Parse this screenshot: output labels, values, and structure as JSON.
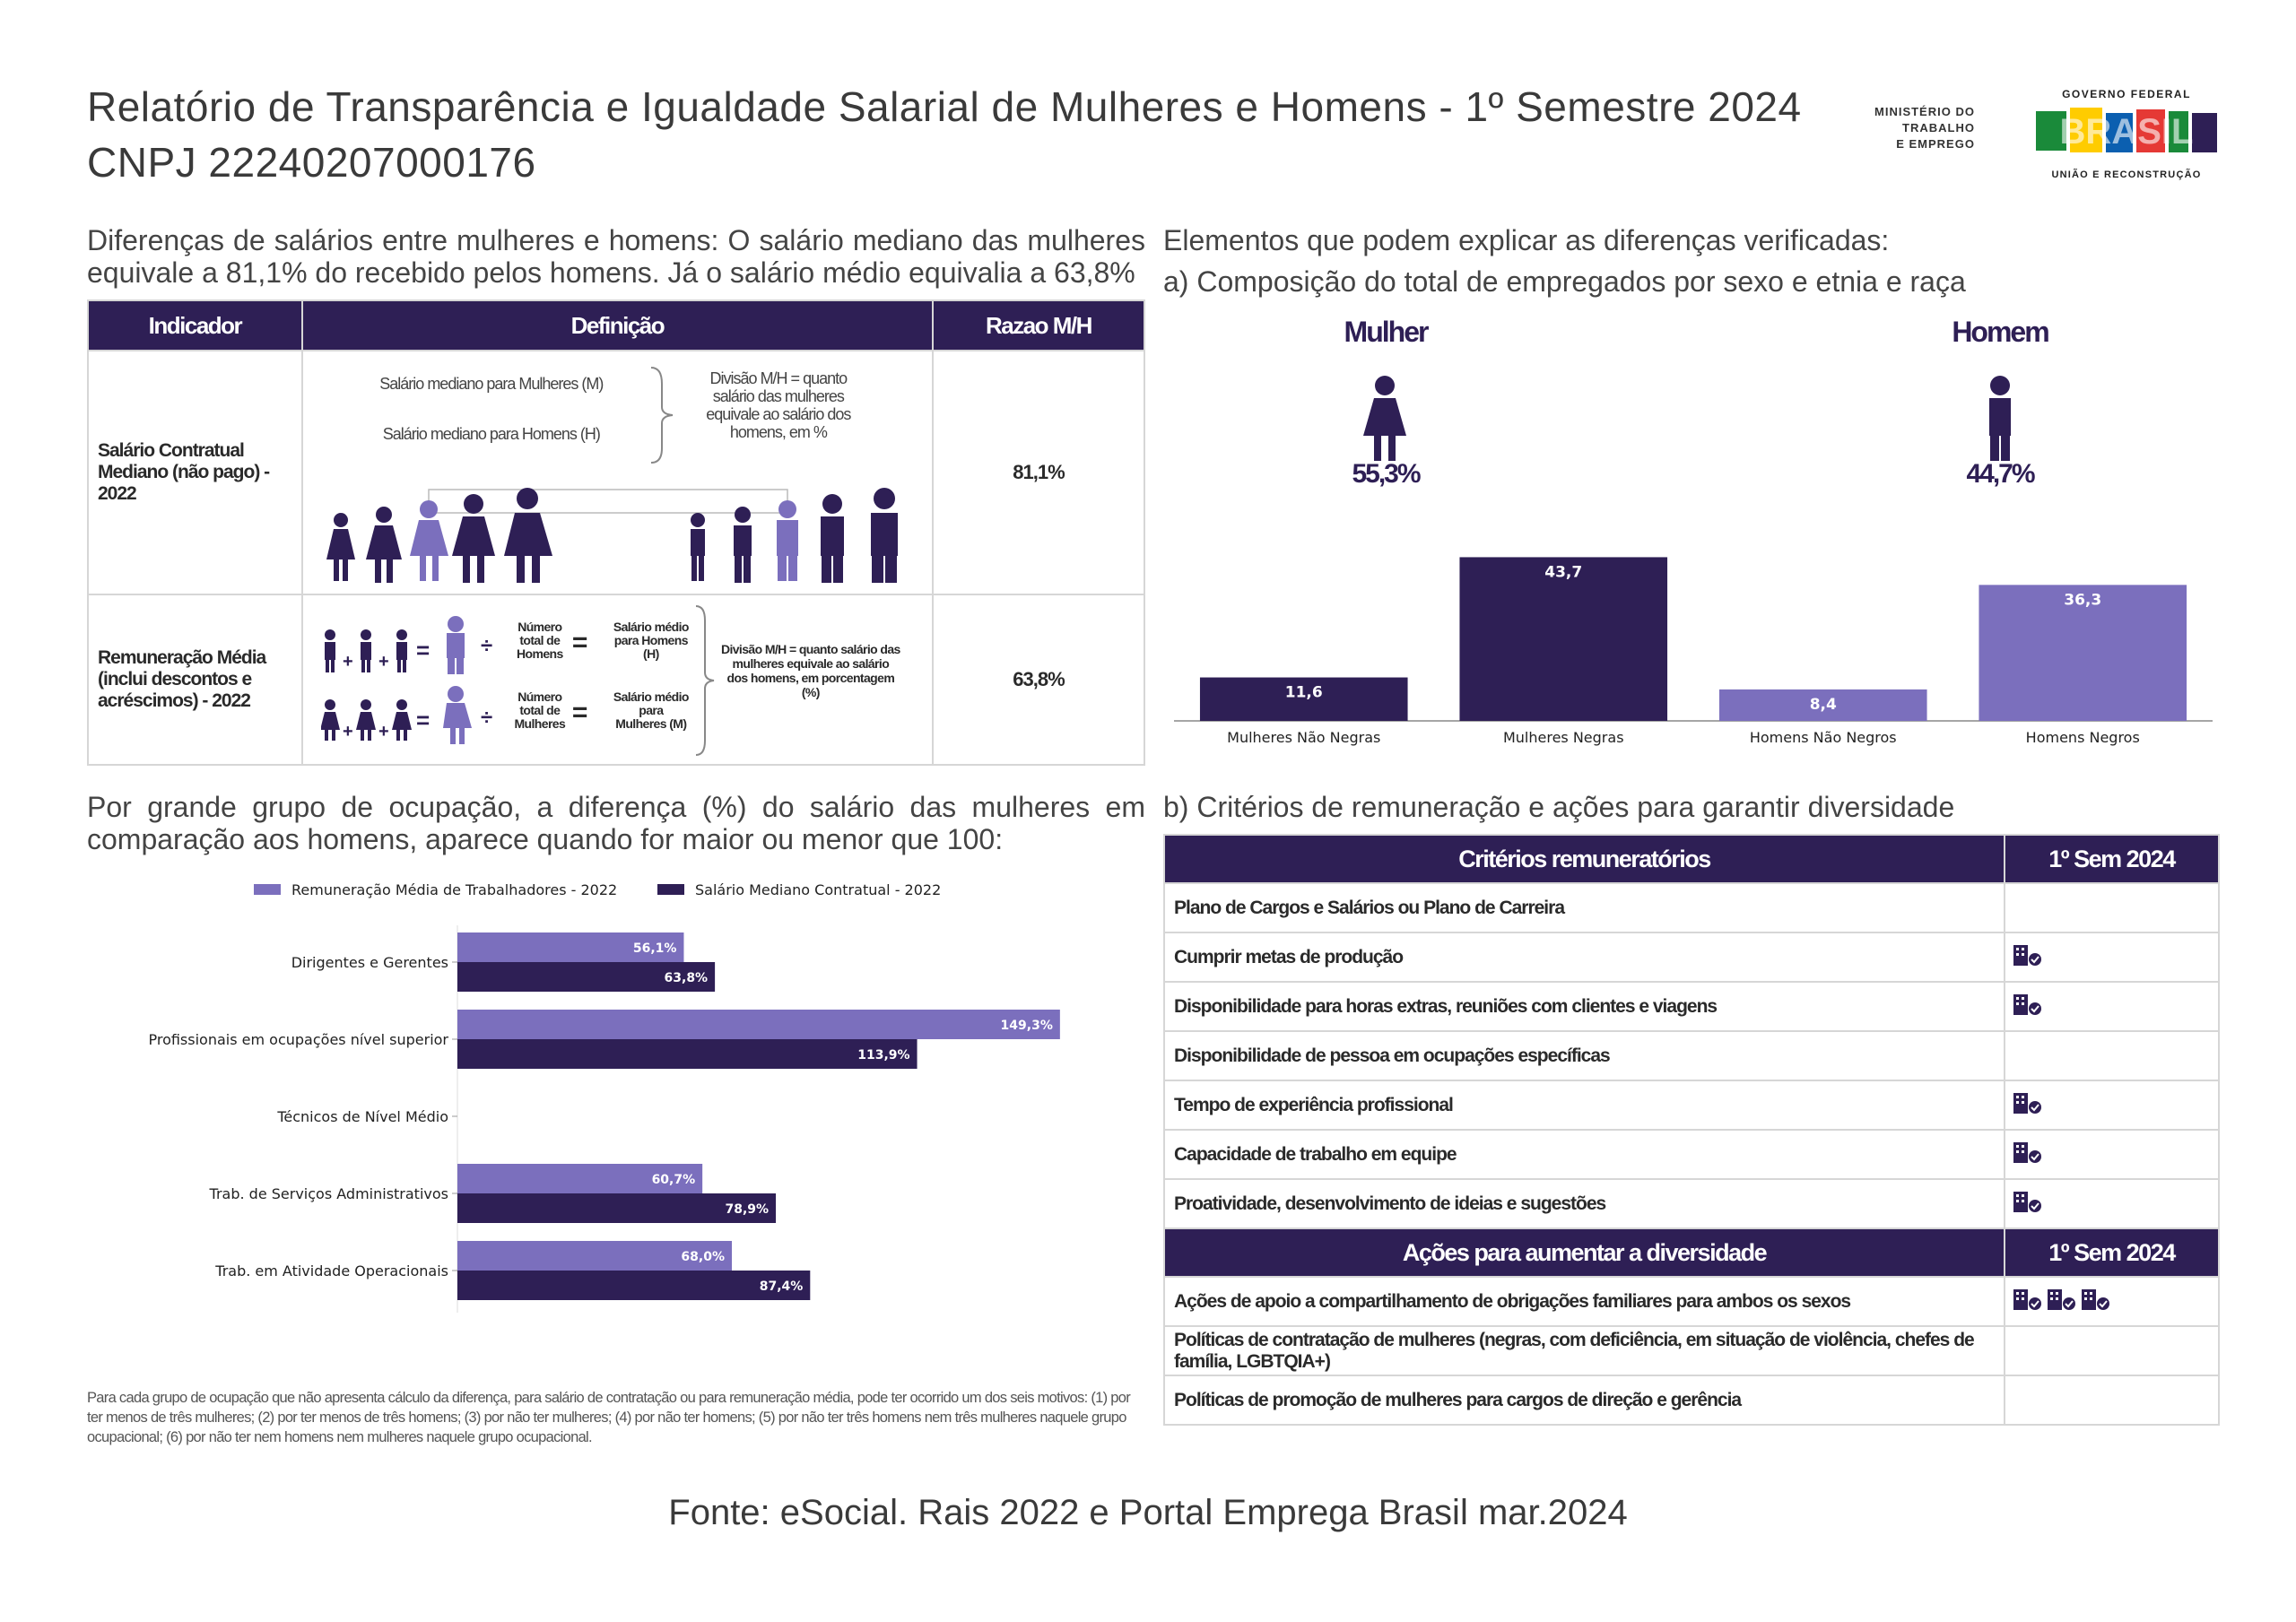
{
  "header": {
    "title": "Relatório de Transparência e Igualdade Salarial de Mulheres e Homens - 1º Semestre 2024",
    "cnpj": "CNPJ 22240207000176",
    "ministry_lines": [
      "MINISTÉRIO DO",
      "TRABALHO",
      "E EMPREGO"
    ],
    "gov_top": "GOVERNO FEDERAL",
    "gov_brand": "BRASIL",
    "gov_bottom": "UNIÃO E RECONSTRUÇÃO"
  },
  "left_section": {
    "heading": "Diferenças de salários entre mulheres e homens: O salário mediano das mulheres equivale a 81,1% do recebido pelos homens. Já o salário médio equivalia a 63,8%",
    "table": {
      "headers": [
        "Indicador",
        "Definição",
        "Razao M/H"
      ],
      "row1": {
        "label": "Salário Contratual Mediano (não pago) - 2022",
        "def_women": "Salário mediano para Mulheres (M)",
        "def_men": "Salário mediano para Homens (H)",
        "def_division": "Divisão M/H = quanto salário das mulheres equivale ao salário dos homens, em %",
        "ratio": "81,1%"
      },
      "row2": {
        "label": "Remuneração Média (inclui descontos e acréscimos) - 2022",
        "total_men": "Número total de Homens",
        "avg_men": "Salário médio para Homens (H)",
        "total_women": "Número total de Mulheres",
        "avg_women": "Salário médio para Mulheres (M)",
        "division": "Divisão M/H = quanto salário das mulheres equivale ao salário dos homens, em porcentagem (%)",
        "ratio": "63,8%"
      }
    }
  },
  "occupation_section": {
    "heading": "Por grande grupo de ocupação, a diferença (%) do salário das mulheres em comparação aos homens, aparece quando for maior ou menor que 100:",
    "note": "Para cada grupo de ocupação que não apresenta cálculo da diferença, para salário de contratação ou para remuneração média, pode ter ocorrido um dos seis motivos: (1) por ter menos de três mulheres; (2) por ter menos de três homens; (3) por não ter mulheres; (4) por não ter homens; (5) por não ter três homens nem três mulheres naquele grupo ocupacional; (6) por não ter nem homens nem mulheres naquele grupo ocupacional."
  },
  "right_section": {
    "heading": "Elementos que podem explicar as diferenças verificadas:",
    "sub_a": "a) Composição do total de empregados por sexo e etnia e raça",
    "women_label": "Mulher",
    "women_pct": "55,3%",
    "men_label": "Homem",
    "men_pct": "44,7%",
    "sub_b": "b) Critérios de remuneração e ações para garantir diversidade",
    "criteria_header": "Critérios remuneratórios",
    "sem_header": "1º Sem 2024",
    "criteria": [
      {
        "label": "Plano de Cargos e Salários ou Plano de Carreira",
        "icons": 0
      },
      {
        "label": "Cumprir metas de produção",
        "icons": 1
      },
      {
        "label": "Disponibilidade para horas extras, reuniões com clientes e viagens",
        "icons": 1
      },
      {
        "label": "Disponibilidade de pessoa em ocupações específicas",
        "icons": 0
      },
      {
        "label": "Tempo de experiência profissional",
        "icons": 1
      },
      {
        "label": "Capacidade de trabalho em equipe",
        "icons": 1
      },
      {
        "label": "Proatividade, desenvolvimento de ideias e sugestões",
        "icons": 1
      }
    ],
    "actions_header": "Ações para aumentar a diversidade",
    "actions": [
      {
        "label": "Ações de apoio a compartilhamento de obrigações familiares para ambos os sexos",
        "icons": 3
      },
      {
        "label": "Políticas de contratação de mulheres (negras, com deficiência, em situação de violência, chefes de família, LGBTQIA+)",
        "icons": 0
      },
      {
        "label": "Políticas de promoção de mulheres para cargos de direção e gerência",
        "icons": 0
      }
    ]
  },
  "footer": "Fonte: eSocial. Rais 2022 e Portal Emprega Brasil mar.2024",
  "colors": {
    "dark": "#2e1f55",
    "light": "#7b6fbd"
  },
  "chart_data": [
    {
      "type": "bar",
      "categories": [
        "Mulheres Não Negras",
        "Mulheres Negras",
        "Homens Não Negros",
        "Homens Negros"
      ],
      "values": [
        11.6,
        43.7,
        8.4,
        36.3
      ],
      "value_labels": [
        "11,6",
        "43,7",
        "8,4",
        "36,3"
      ],
      "colors": [
        "#2e1f55",
        "#2e1f55",
        "#7b6fbd",
        "#7b6fbd"
      ],
      "ylim": [
        0,
        45
      ]
    },
    {
      "type": "bar",
      "orientation": "horizontal",
      "categories": [
        "Dirigentes e Gerentes",
        "Profissionais em ocupações nível superior",
        "Técnicos de Nível Médio",
        "Trab. de Serviços Administrativos",
        "Trab. em Atividade Operacionais"
      ],
      "series": [
        {
          "name": "Remuneração Média de Trabalhadores - 2022",
          "values": [
            56.1,
            149.3,
            null,
            60.7,
            68.0
          ],
          "labels": [
            "56,1%",
            "149,3%",
            "",
            "60,7%",
            "68,0%"
          ],
          "color": "#7b6fbd"
        },
        {
          "name": "Salário Mediano Contratual - 2022",
          "values": [
            63.8,
            113.9,
            null,
            78.9,
            87.4
          ],
          "labels": [
            "63,8%",
            "113,9%",
            "",
            "78,9%",
            "87,4%"
          ],
          "color": "#2e1f55"
        }
      ],
      "xlim": [
        0,
        160
      ],
      "legend": "top"
    }
  ]
}
